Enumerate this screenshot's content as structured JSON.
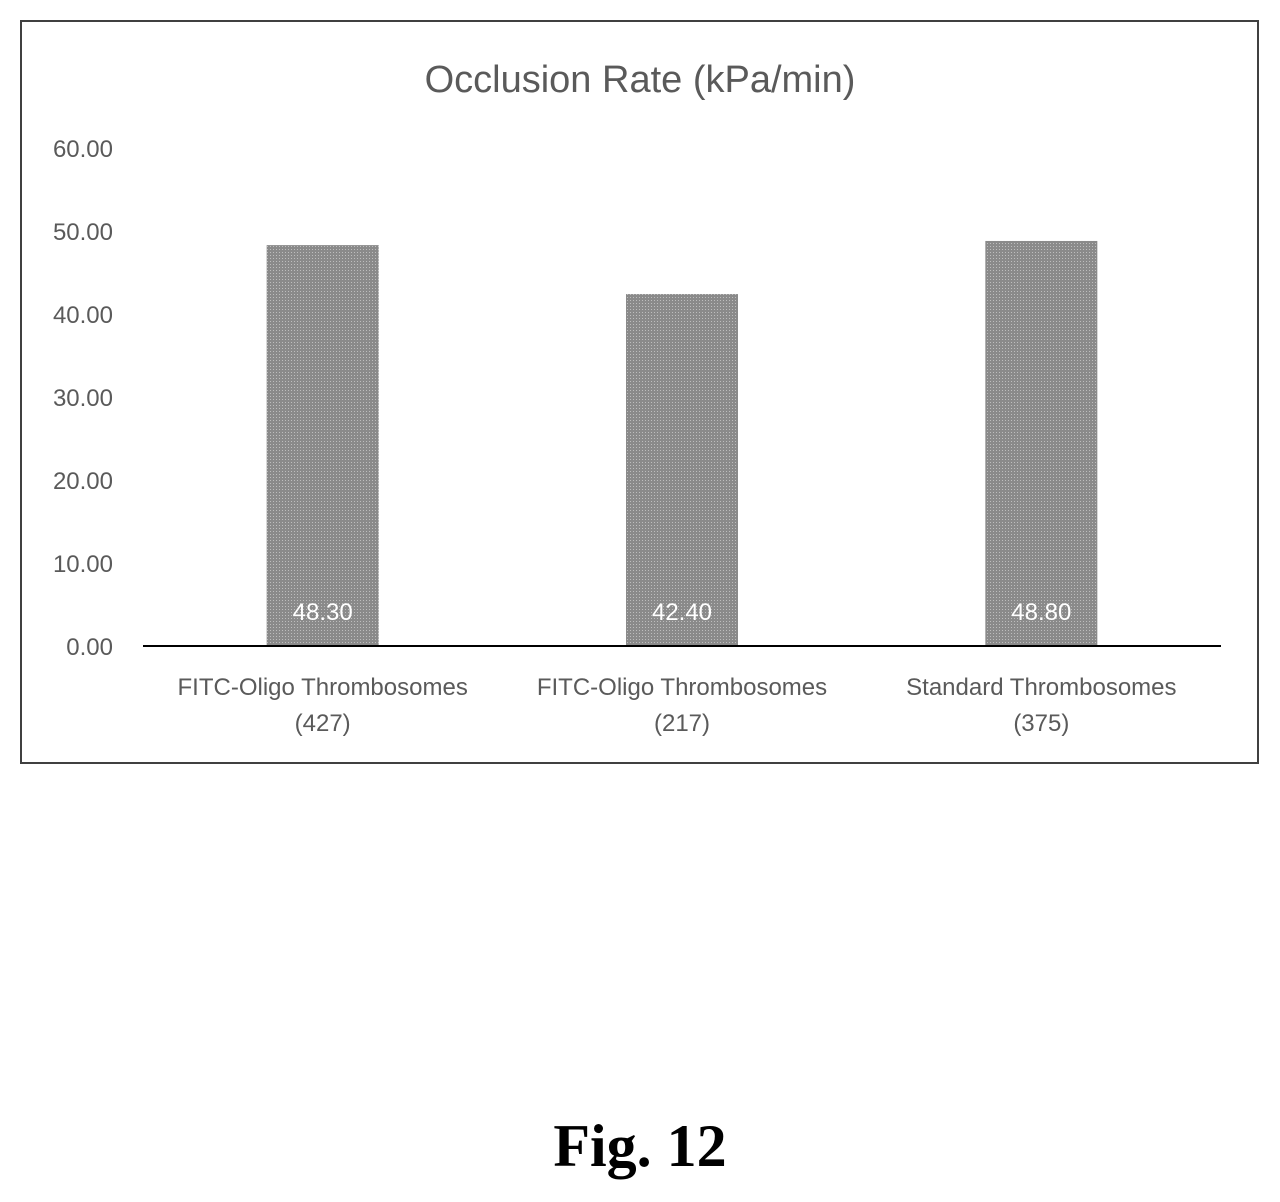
{
  "chart_data": {
    "type": "bar",
    "title": "Occlusion Rate (kPa/min)",
    "categories": [
      [
        "FITC-Oligo Thrombosomes",
        "(427)"
      ],
      [
        "FITC-Oligo Thrombosomes",
        "(217)"
      ],
      [
        "Standard Thrombosomes",
        "(375)"
      ]
    ],
    "values": [
      48.3,
      42.4,
      48.8
    ],
    "data_labels": [
      "48.30",
      "42.40",
      "48.80"
    ],
    "yticks": [
      "0.00",
      "10.00",
      "20.00",
      "30.00",
      "40.00",
      "50.00",
      "60.00"
    ],
    "ylim": [
      0,
      60
    ],
    "grid": false,
    "legend": "none",
    "bar_color": "#8a8a8a",
    "frame_color": "#404040"
  },
  "figure": {
    "caption": "Fig. 12"
  }
}
